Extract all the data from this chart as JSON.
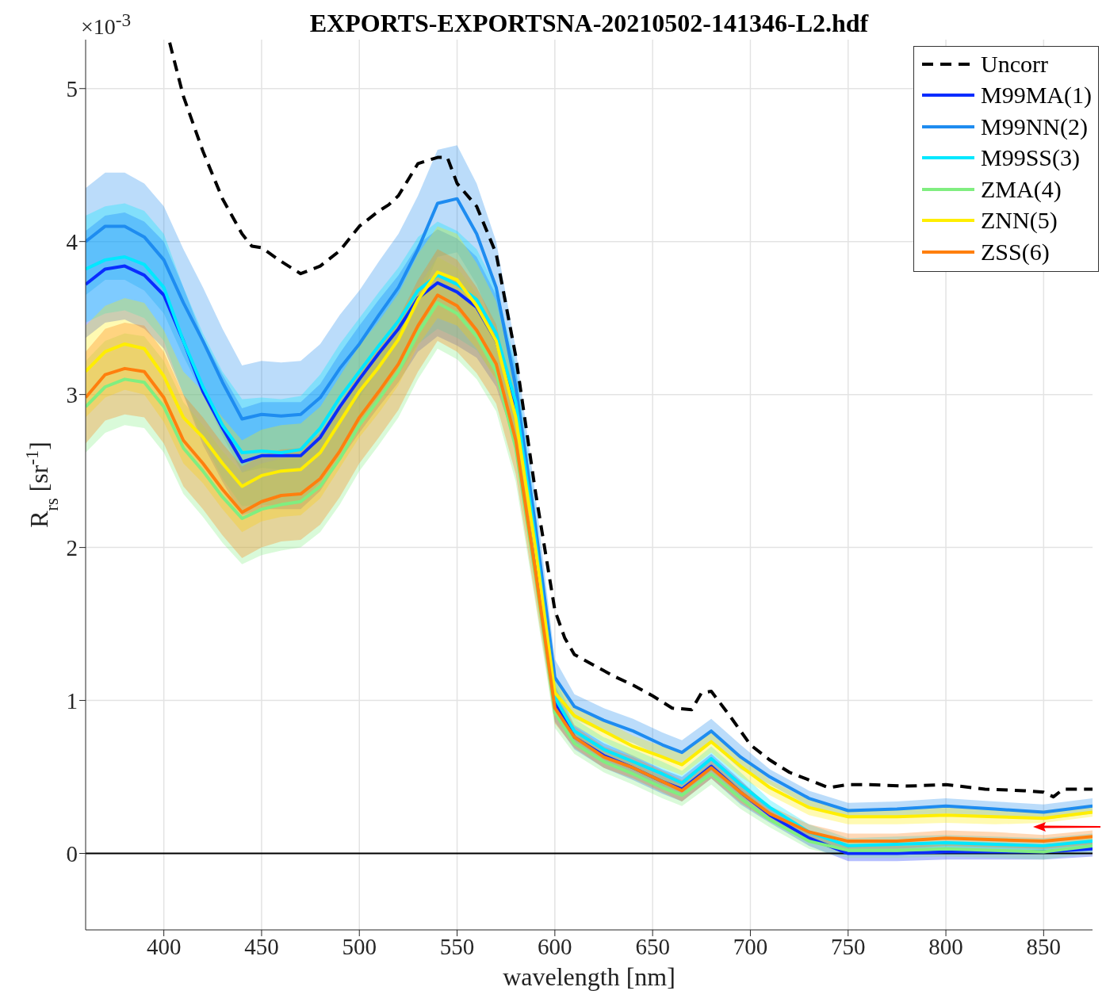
{
  "chart_data": {
    "type": "line",
    "title": "EXPORTS-EXPORTSNA-20210502-141346-L2.hdf",
    "xlabel": "wavelength [nm]",
    "ylabel": "R$_{rs}$ [sr$^{-1}$]",
    "annotations": [
      "×10$^{-3}$"
    ],
    "x": [
      360,
      370,
      380,
      390,
      400,
      410,
      420,
      430,
      440,
      450,
      460,
      470,
      480,
      490,
      500,
      510,
      520,
      530,
      540,
      550,
      560,
      570,
      580,
      590,
      600,
      610,
      625,
      640,
      655,
      665,
      680,
      695,
      710,
      730,
      750,
      775,
      800,
      825,
      850,
      875
    ],
    "xlim": [
      360,
      875
    ],
    "xticks": [
      400,
      450,
      500,
      550,
      600,
      650,
      700,
      750,
      800,
      850
    ],
    "ylim": [
      -0.5,
      5.32
    ],
    "yticks": [
      0,
      1,
      2,
      3,
      4,
      5
    ],
    "grid": true,
    "legend": "top right",
    "marker": "none",
    "ref_lines": [
      {
        "axis": "y",
        "value": 0,
        "color": "#000000",
        "line_style": "solid"
      }
    ],
    "series": [
      {
        "name": "Uncorr",
        "color": "#000000",
        "line_style": "dashed",
        "x": [
          403,
          410,
          420,
          430,
          440,
          445,
          450,
          460,
          470,
          480,
          490,
          500,
          510,
          515,
          520,
          530,
          540,
          545,
          550,
          560,
          570,
          580,
          590,
          600,
          605,
          610,
          620,
          630,
          640,
          650,
          660,
          670,
          675,
          680,
          690,
          700,
          710,
          720,
          730,
          740,
          750,
          760,
          780,
          800,
          820,
          840,
          850,
          855,
          860,
          875
        ],
        "values": [
          5.3,
          4.95,
          4.59,
          4.28,
          4.05,
          3.97,
          3.96,
          3.87,
          3.79,
          3.84,
          3.94,
          4.1,
          4.2,
          4.24,
          4.3,
          4.51,
          4.55,
          4.55,
          4.38,
          4.23,
          3.92,
          3.25,
          2.37,
          1.59,
          1.41,
          1.3,
          1.23,
          1.16,
          1.1,
          1.03,
          0.95,
          0.94,
          1.05,
          1.06,
          0.89,
          0.71,
          0.61,
          0.53,
          0.48,
          0.43,
          0.45,
          0.45,
          0.44,
          0.45,
          0.42,
          0.41,
          0.4,
          0.37,
          0.42,
          0.42
        ]
      },
      {
        "name": "M99MA(1)",
        "color": "#0a2cff",
        "values": [
          3.72,
          3.82,
          3.84,
          3.78,
          3.65,
          3.35,
          3.02,
          2.78,
          2.56,
          2.6,
          2.6,
          2.6,
          2.72,
          2.92,
          3.1,
          3.27,
          3.43,
          3.63,
          3.73,
          3.67,
          3.57,
          3.35,
          2.92,
          2.0,
          0.98,
          0.76,
          0.64,
          0.56,
          0.47,
          0.42,
          0.57,
          0.4,
          0.25,
          0.1,
          0.0,
          0.0,
          0.01,
          0.01,
          0.01,
          0.03
        ],
        "lower": [
          3.37,
          3.47,
          3.49,
          3.43,
          3.3,
          3.0,
          2.67,
          2.43,
          2.21,
          2.25,
          2.25,
          2.25,
          2.37,
          2.57,
          2.75,
          2.92,
          3.08,
          3.28,
          3.38,
          3.32,
          3.24,
          3.05,
          2.67,
          1.8,
          0.86,
          0.68,
          0.56,
          0.48,
          0.39,
          0.34,
          0.49,
          0.32,
          0.2,
          0.05,
          -0.05,
          -0.05,
          -0.04,
          -0.04,
          -0.04,
          -0.02
        ],
        "upper": [
          4.07,
          4.17,
          4.19,
          4.13,
          4.0,
          3.7,
          3.37,
          3.13,
          2.91,
          2.95,
          2.95,
          2.95,
          3.07,
          3.27,
          3.45,
          3.62,
          3.78,
          3.98,
          4.08,
          4.02,
          3.9,
          3.65,
          3.17,
          2.2,
          1.1,
          0.84,
          0.72,
          0.64,
          0.55,
          0.5,
          0.65,
          0.48,
          0.3,
          0.15,
          0.05,
          0.05,
          0.06,
          0.06,
          0.06,
          0.08
        ]
      },
      {
        "name": "M99NN(2)",
        "color": "#1e8cf0",
        "values": [
          4.0,
          4.1,
          4.1,
          4.03,
          3.88,
          3.6,
          3.35,
          3.08,
          2.84,
          2.87,
          2.86,
          2.87,
          2.98,
          3.17,
          3.33,
          3.52,
          3.7,
          3.95,
          4.25,
          4.28,
          4.05,
          3.7,
          3.05,
          2.15,
          1.15,
          0.96,
          0.87,
          0.8,
          0.71,
          0.66,
          0.8,
          0.63,
          0.5,
          0.36,
          0.28,
          0.29,
          0.31,
          0.29,
          0.27,
          0.31
        ],
        "lower": [
          3.65,
          3.75,
          3.75,
          3.68,
          3.53,
          3.25,
          3.0,
          2.73,
          2.49,
          2.52,
          2.51,
          2.52,
          2.63,
          2.82,
          2.98,
          3.17,
          3.35,
          3.6,
          3.9,
          3.93,
          3.72,
          3.4,
          2.8,
          1.95,
          1.03,
          0.88,
          0.79,
          0.72,
          0.63,
          0.58,
          0.72,
          0.55,
          0.45,
          0.31,
          0.23,
          0.24,
          0.26,
          0.24,
          0.22,
          0.26
        ],
        "upper": [
          4.35,
          4.45,
          4.45,
          4.38,
          4.23,
          3.95,
          3.7,
          3.43,
          3.19,
          3.22,
          3.21,
          3.22,
          3.33,
          3.52,
          3.68,
          3.87,
          4.05,
          4.3,
          4.6,
          4.63,
          4.38,
          4.0,
          3.3,
          2.35,
          1.27,
          1.04,
          0.95,
          0.88,
          0.79,
          0.74,
          0.88,
          0.71,
          0.55,
          0.41,
          0.33,
          0.34,
          0.36,
          0.34,
          0.32,
          0.36
        ]
      },
      {
        "name": "M99SS(3)",
        "color": "#00e8ff",
        "values": [
          3.82,
          3.88,
          3.9,
          3.85,
          3.7,
          3.35,
          3.05,
          2.8,
          2.62,
          2.63,
          2.62,
          2.64,
          2.78,
          2.98,
          3.15,
          3.32,
          3.48,
          3.68,
          3.78,
          3.72,
          3.62,
          3.4,
          2.95,
          2.05,
          1.02,
          0.8,
          0.68,
          0.6,
          0.52,
          0.46,
          0.62,
          0.45,
          0.3,
          0.14,
          0.05,
          0.06,
          0.07,
          0.06,
          0.05,
          0.08
        ],
        "lower": [
          3.47,
          3.53,
          3.55,
          3.5,
          3.35,
          3.0,
          2.7,
          2.45,
          2.27,
          2.28,
          2.27,
          2.29,
          2.43,
          2.63,
          2.8,
          2.97,
          3.13,
          3.33,
          3.43,
          3.37,
          3.29,
          3.1,
          2.7,
          1.85,
          0.9,
          0.72,
          0.6,
          0.52,
          0.44,
          0.38,
          0.54,
          0.37,
          0.25,
          0.09,
          0.0,
          0.01,
          0.02,
          0.01,
          0.0,
          0.03
        ],
        "upper": [
          4.17,
          4.23,
          4.25,
          4.2,
          4.05,
          3.7,
          3.4,
          3.15,
          2.97,
          2.98,
          2.97,
          2.99,
          3.13,
          3.33,
          3.5,
          3.67,
          3.83,
          4.03,
          4.13,
          4.07,
          3.95,
          3.7,
          3.2,
          2.25,
          1.14,
          0.88,
          0.76,
          0.68,
          0.6,
          0.54,
          0.7,
          0.53,
          0.35,
          0.19,
          0.1,
          0.11,
          0.12,
          0.11,
          0.1,
          0.13
        ]
      },
      {
        "name": "ZMA(4)",
        "color": "#80ee80",
        "values": [
          2.92,
          3.05,
          3.1,
          3.08,
          2.92,
          2.65,
          2.5,
          2.33,
          2.19,
          2.25,
          2.28,
          2.3,
          2.4,
          2.58,
          2.8,
          2.97,
          3.15,
          3.4,
          3.6,
          3.53,
          3.38,
          3.15,
          2.65,
          1.82,
          0.92,
          0.72,
          0.6,
          0.52,
          0.43,
          0.38,
          0.52,
          0.36,
          0.22,
          0.08,
          0.02,
          0.02,
          0.03,
          0.02,
          0.01,
          0.05
        ],
        "lower": [
          2.62,
          2.75,
          2.8,
          2.78,
          2.62,
          2.35,
          2.2,
          2.03,
          1.89,
          1.95,
          1.98,
          2.0,
          2.1,
          2.28,
          2.5,
          2.67,
          2.85,
          3.1,
          3.3,
          3.23,
          3.1,
          2.89,
          2.43,
          1.64,
          0.82,
          0.65,
          0.53,
          0.45,
          0.36,
          0.31,
          0.45,
          0.29,
          0.17,
          0.03,
          -0.03,
          -0.03,
          -0.02,
          -0.03,
          -0.04,
          0.0
        ],
        "upper": [
          3.22,
          3.35,
          3.4,
          3.38,
          3.22,
          2.95,
          2.8,
          2.63,
          2.49,
          2.55,
          2.58,
          2.6,
          2.7,
          2.88,
          3.1,
          3.27,
          3.45,
          3.7,
          3.9,
          3.83,
          3.66,
          3.41,
          2.87,
          2.0,
          1.02,
          0.79,
          0.67,
          0.59,
          0.5,
          0.45,
          0.59,
          0.43,
          0.27,
          0.13,
          0.07,
          0.07,
          0.08,
          0.07,
          0.06,
          0.1
        ]
      },
      {
        "name": "ZNN(5)",
        "color": "#ffee00",
        "values": [
          3.15,
          3.28,
          3.33,
          3.3,
          3.12,
          2.85,
          2.72,
          2.55,
          2.4,
          2.47,
          2.5,
          2.51,
          2.62,
          2.82,
          3.02,
          3.18,
          3.36,
          3.62,
          3.8,
          3.75,
          3.58,
          3.35,
          2.85,
          2.0,
          1.05,
          0.9,
          0.8,
          0.7,
          0.63,
          0.58,
          0.73,
          0.57,
          0.43,
          0.3,
          0.24,
          0.24,
          0.25,
          0.24,
          0.23,
          0.27
        ],
        "lower": [
          2.85,
          2.98,
          3.03,
          3.0,
          2.82,
          2.55,
          2.42,
          2.25,
          2.1,
          2.17,
          2.2,
          2.21,
          2.32,
          2.52,
          2.72,
          2.88,
          3.06,
          3.32,
          3.5,
          3.45,
          3.3,
          3.09,
          2.63,
          1.82,
          0.95,
          0.83,
          0.73,
          0.63,
          0.56,
          0.51,
          0.66,
          0.5,
          0.38,
          0.25,
          0.19,
          0.19,
          0.2,
          0.19,
          0.2,
          0.24
        ],
        "upper": [
          3.45,
          3.58,
          3.63,
          3.6,
          3.42,
          3.15,
          3.02,
          2.85,
          2.7,
          2.77,
          2.8,
          2.81,
          2.92,
          3.12,
          3.32,
          3.48,
          3.66,
          3.92,
          4.1,
          4.05,
          3.86,
          3.61,
          3.07,
          2.18,
          1.15,
          0.97,
          0.87,
          0.77,
          0.7,
          0.65,
          0.8,
          0.64,
          0.48,
          0.35,
          0.29,
          0.29,
          0.3,
          0.29,
          0.28,
          0.32
        ]
      },
      {
        "name": "ZSS(6)",
        "color": "#ff7f0e",
        "values": [
          2.98,
          3.13,
          3.17,
          3.15,
          2.98,
          2.7,
          2.55,
          2.38,
          2.23,
          2.3,
          2.34,
          2.35,
          2.45,
          2.63,
          2.85,
          3.02,
          3.2,
          3.45,
          3.65,
          3.58,
          3.42,
          3.2,
          2.7,
          1.85,
          0.95,
          0.76,
          0.63,
          0.56,
          0.47,
          0.41,
          0.56,
          0.4,
          0.26,
          0.14,
          0.08,
          0.08,
          0.1,
          0.09,
          0.08,
          0.11
        ],
        "lower": [
          2.68,
          2.83,
          2.87,
          2.85,
          2.68,
          2.4,
          2.25,
          2.08,
          1.93,
          2.0,
          2.04,
          2.05,
          2.15,
          2.33,
          2.55,
          2.72,
          2.9,
          3.15,
          3.35,
          3.28,
          3.14,
          2.94,
          2.48,
          1.67,
          0.85,
          0.69,
          0.56,
          0.49,
          0.4,
          0.34,
          0.49,
          0.33,
          0.21,
          0.09,
          0.03,
          0.03,
          0.05,
          0.04,
          0.03,
          0.06
        ],
        "upper": [
          3.28,
          3.43,
          3.47,
          3.45,
          3.28,
          3.0,
          2.85,
          2.68,
          2.53,
          2.6,
          2.64,
          2.65,
          2.75,
          2.93,
          3.15,
          3.32,
          3.5,
          3.75,
          3.95,
          3.88,
          3.7,
          3.46,
          2.92,
          2.03,
          1.05,
          0.83,
          0.7,
          0.63,
          0.54,
          0.48,
          0.63,
          0.47,
          0.31,
          0.19,
          0.13,
          0.13,
          0.15,
          0.14,
          0.12,
          0.15
        ]
      }
    ]
  }
}
